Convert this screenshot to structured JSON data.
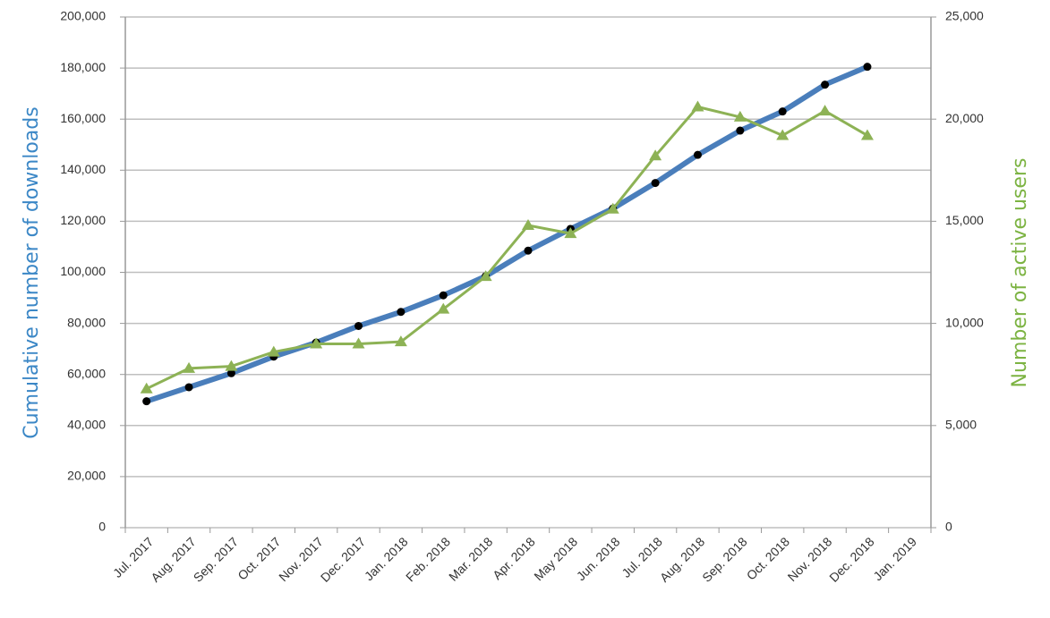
{
  "chart_data": {
    "type": "line",
    "y_label": "Cumulative number of downloads",
    "y2_label": "Number of active users",
    "categories": [
      "Jul. 2017",
      "Aug. 2017",
      "Sep. 2017",
      "Oct. 2017",
      "Nov. 2017",
      "Dec. 2017",
      "Jan. 2018",
      "Feb. 2018",
      "Mar. 2018",
      "Apr. 2018",
      "May 2018",
      "Jun. 2018",
      "Jul. 2018",
      "Aug. 2018",
      "Sep. 2018",
      "Oct. 2018",
      "Nov. 2018",
      "Dec. 2018",
      "Jan. 2019"
    ],
    "series": [
      {
        "name": "Cumulative number of downloads",
        "color": "#4a7ebb",
        "marker_color": "#000000",
        "marker": "circle",
        "values": [
          49500,
          55000,
          60500,
          67000,
          72500,
          79000,
          84500,
          91000,
          98500,
          108500,
          117000,
          125000,
          135000,
          146000,
          155500,
          163000,
          173500,
          180500,
          null
        ]
      },
      {
        "name": "Number of active users",
        "color": "#8db255",
        "marker_color": "#8db255",
        "marker": "triangle",
        "axis": "y2",
        "values": [
          6800,
          7800,
          7900,
          8600,
          9000,
          9000,
          9100,
          10700,
          12300,
          14800,
          14400,
          15600,
          18200,
          20600,
          20100,
          19200,
          20400,
          19200,
          null
        ]
      }
    ],
    "ylim": [
      0,
      200000
    ],
    "yticks": [
      0,
      {
        "value": 20000,
        "label": "20,000"
      },
      {
        "value": 40000,
        "label": "40,000"
      },
      {
        "value": 60000,
        "label": "60,000"
      },
      {
        "value": 80000,
        "label": "80,000"
      },
      {
        "value": 100000,
        "label": "100,000"
      },
      {
        "value": 120000,
        "label": "120,000"
      },
      {
        "value": 140000,
        "label": "140,000"
      },
      {
        "value": 160000,
        "label": "160,000"
      },
      {
        "value": 180000,
        "label": "180,000"
      },
      {
        "value": 200000,
        "label": "200,000"
      }
    ],
    "y2lim": [
      0,
      25000
    ],
    "y2ticks": [
      0,
      {
        "value": 5000,
        "label": "5,000"
      },
      {
        "value": 10000,
        "label": "10,000"
      },
      {
        "value": 15000,
        "label": "15,000"
      },
      {
        "value": 20000,
        "label": "20,000"
      },
      {
        "value": 25000,
        "label": "25,000"
      }
    ],
    "grid": true
  }
}
